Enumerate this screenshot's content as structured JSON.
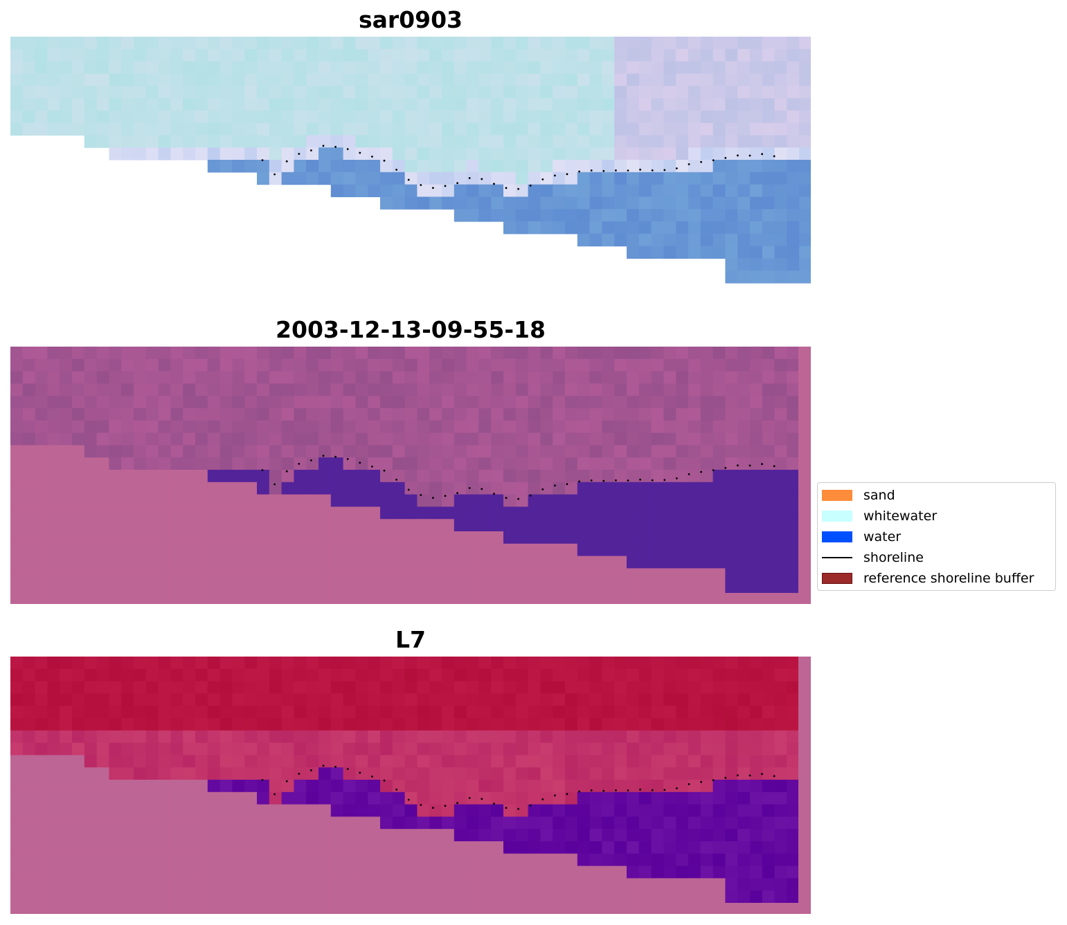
{
  "panels": [
    {
      "title": "sar0903",
      "style": "rgb"
    },
    {
      "title": "2003-12-13-09-55-18",
      "style": "classified"
    },
    {
      "title": "L7",
      "style": "mndwi"
    }
  ],
  "legend": {
    "placement": "center-right",
    "items": [
      {
        "label": "sand",
        "color": "#ff8c3a",
        "kind": "patch"
      },
      {
        "label": "whitewater",
        "color": "#c8ffff",
        "kind": "patch"
      },
      {
        "label": "water",
        "color": "#0050ff",
        "kind": "patch"
      },
      {
        "label": "shoreline",
        "color": "#000000",
        "kind": "line"
      },
      {
        "label": "reference shoreline buffer",
        "color": "#9b2a2a",
        "kind": "patch"
      }
    ]
  },
  "colors": {
    "nodata": "#bd6595",
    "classified_water": "#53239a",
    "classified_surf": "#9b4d8d",
    "mndwi_land": "#c11f4c",
    "mndwi_water": "#5f0ba0",
    "shoreline_points": "#000000"
  }
}
